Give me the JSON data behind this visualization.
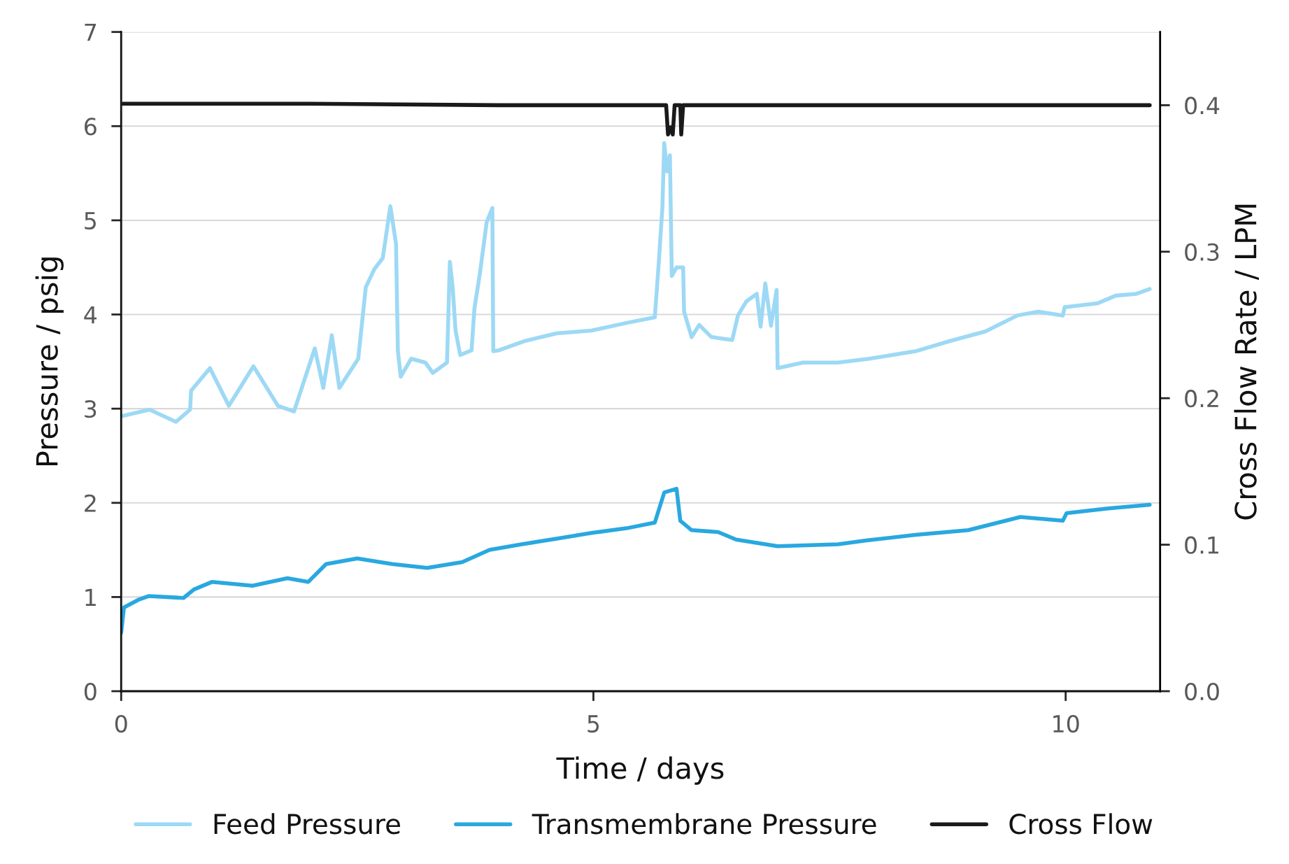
{
  "chart_data": {
    "type": "line",
    "xlabel": "Time / days",
    "ylabel": "Pressure / psig",
    "y2label": "Cross Flow Rate / LPM",
    "xlim": [
      0,
      11
    ],
    "xticks": [
      0,
      5,
      10
    ],
    "ylim": [
      0,
      7
    ],
    "yticks": [
      0,
      1,
      2,
      3,
      4,
      5,
      6,
      7
    ],
    "y2lim": [
      0,
      0.45
    ],
    "y2ticks": [
      {
        "value": 0,
        "label": "0.0"
      },
      0.1,
      0.2,
      0.3,
      0.4
    ],
    "grid": "y",
    "legend": "bottom",
    "marker": "none",
    "line_style": "solid",
    "series": [
      {
        "name": "Feed Pressure",
        "color": "#9dd9f5",
        "x": [
          0,
          0.3,
          0.58,
          0.73,
          0.74,
          0.94,
          1.14,
          1.4,
          1.66,
          1.83,
          2.05,
          2.14,
          2.23,
          2.31,
          2.51,
          2.59,
          2.68,
          2.77,
          2.85,
          2.91,
          2.93,
          2.96,
          3.07,
          3.22,
          3.3,
          3.45,
          3.48,
          3.51,
          3.54,
          3.59,
          3.71,
          3.74,
          3.8,
          3.87,
          3.93,
          3.94,
          4.0,
          4.28,
          4.61,
          4.98,
          5.35,
          5.65,
          5.69,
          5.73,
          5.75,
          5.78,
          5.81,
          5.83,
          5.88,
          5.95,
          5.96,
          6.04,
          6.12,
          6.25,
          6.39,
          6.47,
          6.53,
          6.62,
          6.73,
          6.77,
          6.82,
          6.88,
          6.94,
          6.95,
          7.22,
          7.59,
          7.92,
          8.41,
          8.78,
          9.15,
          9.49,
          9.71,
          9.97,
          9.99,
          10.01,
          10.34,
          10.53,
          10.75,
          10.89
        ],
        "values": [
          2.92,
          2.99,
          2.86,
          2.99,
          3.19,
          3.43,
          3.03,
          3.45,
          3.03,
          2.97,
          3.64,
          3.22,
          3.78,
          3.22,
          3.53,
          4.29,
          4.48,
          4.6,
          5.15,
          4.75,
          3.61,
          3.34,
          3.53,
          3.49,
          3.38,
          3.49,
          4.56,
          4.29,
          3.83,
          3.57,
          3.62,
          4.06,
          4.45,
          4.98,
          5.13,
          3.61,
          3.62,
          3.72,
          3.8,
          3.83,
          3.91,
          3.97,
          4.52,
          5.13,
          5.82,
          5.52,
          5.69,
          4.41,
          4.5,
          4.5,
          4.03,
          3.76,
          3.89,
          3.76,
          3.74,
          3.73,
          3.99,
          4.14,
          4.22,
          3.87,
          4.33,
          3.88,
          4.26,
          3.43,
          3.49,
          3.49,
          3.53,
          3.61,
          3.72,
          3.82,
          3.99,
          4.03,
          3.99,
          4.08,
          4.08,
          4.12,
          4.2,
          4.22,
          4.27
        ]
      },
      {
        "name": "Transmembrane Pressure",
        "color": "#29a8e0",
        "x": [
          0,
          0.03,
          0.18,
          0.29,
          0.66,
          0.77,
          0.96,
          1.39,
          1.76,
          1.98,
          2.17,
          2.5,
          2.87,
          3.24,
          3.61,
          3.9,
          4.24,
          4.61,
          4.98,
          5.35,
          5.65,
          5.75,
          5.88,
          5.92,
          6.04,
          6.32,
          6.51,
          6.95,
          7.59,
          7.89,
          8.41,
          8.97,
          9.52,
          9.97,
          10.01,
          10.45,
          10.89
        ],
        "values": [
          0.62,
          0.89,
          0.97,
          1.01,
          0.99,
          1.08,
          1.16,
          1.12,
          1.2,
          1.16,
          1.35,
          1.41,
          1.35,
          1.31,
          1.37,
          1.5,
          1.56,
          1.62,
          1.68,
          1.73,
          1.79,
          2.11,
          2.15,
          1.81,
          1.71,
          1.69,
          1.61,
          1.54,
          1.56,
          1.6,
          1.66,
          1.71,
          1.85,
          1.81,
          1.89,
          1.94,
          1.98
        ]
      },
      {
        "name": "Cross Flow",
        "color": "#1a1a1a",
        "axis": "y2",
        "x": [
          0,
          2,
          4,
          5.77,
          5.79,
          5.82,
          5.84,
          5.86,
          5.88,
          5.92,
          5.93,
          5.95,
          7,
          9,
          10.89
        ],
        "values": [
          0.401,
          0.401,
          0.4,
          0.4,
          0.38,
          0.385,
          0.38,
          0.4,
          0.4,
          0.4,
          0.38,
          0.4,
          0.4,
          0.4,
          0.4
        ]
      }
    ]
  }
}
